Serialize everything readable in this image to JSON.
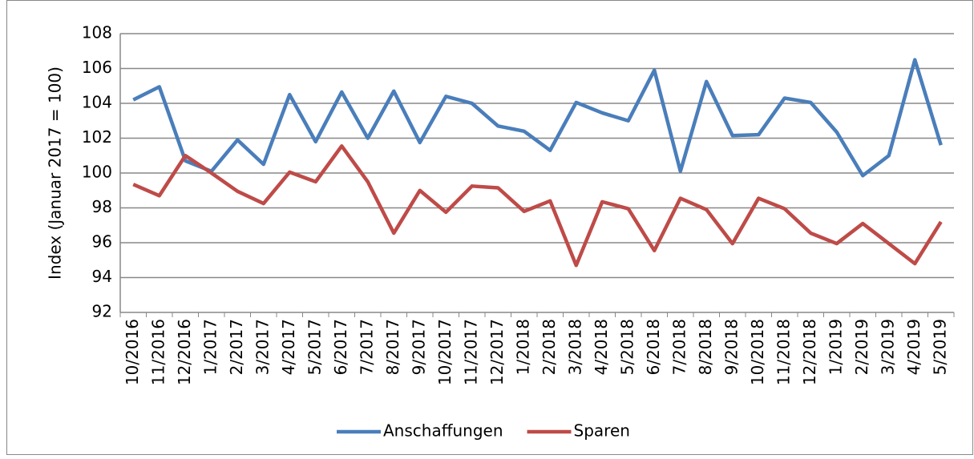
{
  "chart_data": {
    "type": "line",
    "y_label": "Index (Januar 2017 = 100)",
    "categories": [
      "10/2016",
      "11/2016",
      "12/2016",
      "1/2017",
      "2/2017",
      "3/2017",
      "4/2017",
      "5/2017",
      "6/2017",
      "7/2017",
      "8/2017",
      "9/2017",
      "10/2017",
      "11/2017",
      "12/2017",
      "1/2018",
      "2/2018",
      "3/2018",
      "4/2018",
      "5/2018",
      "6/2018",
      "7/2018",
      "8/2018",
      "9/2018",
      "10/2018",
      "11/2018",
      "12/2018",
      "1/2019",
      "2/2019",
      "3/2019",
      "4/2019",
      "5/2019"
    ],
    "series": [
      {
        "name": "Anschaffungen",
        "color": "#4a7ebb",
        "values": [
          104.2,
          104.95,
          100.7,
          100.1,
          101.9,
          100.5,
          104.5,
          101.8,
          104.65,
          102.0,
          104.7,
          101.75,
          104.4,
          104.0,
          102.7,
          102.4,
          101.3,
          104.05,
          103.45,
          103.0,
          105.9,
          100.1,
          105.25,
          102.15,
          102.2,
          104.3,
          104.05,
          102.35,
          99.85,
          101.0,
          106.5,
          101.6
        ]
      },
      {
        "name": "Sparen",
        "color": "#be4b48",
        "values": [
          99.35,
          98.7,
          101.0,
          100.0,
          98.95,
          98.25,
          100.05,
          99.5,
          101.55,
          99.5,
          96.55,
          99.0,
          97.75,
          99.25,
          99.15,
          97.8,
          98.4,
          94.7,
          98.35,
          97.95,
          95.55,
          98.55,
          97.9,
          95.95,
          98.55,
          97.95,
          96.55,
          95.95,
          97.1,
          95.95,
          94.8,
          97.2
        ]
      }
    ],
    "ylim": [
      92,
      108
    ],
    "yticks": [
      92,
      94,
      96,
      98,
      100,
      102,
      104,
      106,
      108
    ],
    "grid": true,
    "legend": "bottom"
  }
}
